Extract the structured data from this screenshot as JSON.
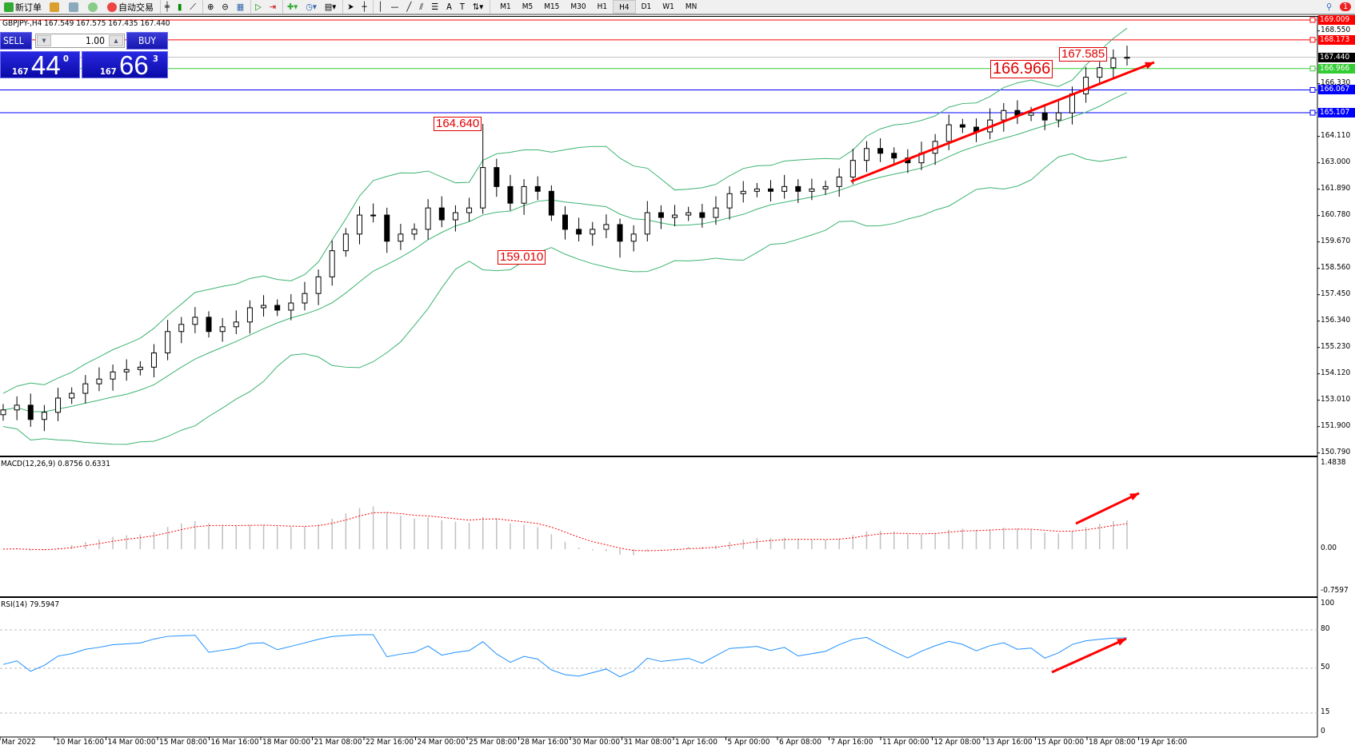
{
  "toolbar": {
    "new_order": "新订单",
    "auto_trading": "自动交易",
    "timeframes": [
      "M1",
      "M5",
      "M15",
      "M30",
      "H1",
      "H4",
      "D1",
      "W1",
      "MN"
    ],
    "active_timeframe": "H4",
    "notification_count": "1"
  },
  "chart": {
    "info": "GBPJPY-,H4  167.549 167.575 167.435 167.440"
  },
  "trade_panel": {
    "sell": "SELL",
    "buy": "BUY",
    "lot": "1.00",
    "bid_small": "167",
    "bid_big": "44",
    "bid_sup": "0",
    "ask_small": "167",
    "ask_big": "66",
    "ask_sup": "3"
  },
  "price_axis": {
    "ticks": [
      "168.550",
      "166.330",
      "164.110",
      "163.000",
      "161.890",
      "160.780",
      "159.670",
      "158.560",
      "157.450",
      "156.340",
      "155.230",
      "154.120",
      "153.010",
      "151.900",
      "150.790"
    ],
    "max": 169.3,
    "min": 150.7
  },
  "levels": [
    {
      "price": "169.009",
      "color": "#ff0000"
    },
    {
      "price": "168.173",
      "color": "#ff0000"
    },
    {
      "price": "167.440",
      "color": "#000000",
      "line": "#c0c0c0"
    },
    {
      "price": "166.966",
      "color": "#32cd32"
    },
    {
      "price": "166.067",
      "color": "#0000ff"
    },
    {
      "price": "165.107",
      "color": "#0000ff"
    }
  ],
  "annotations": {
    "high": "164.640",
    "low": "159.010",
    "level": "166.966",
    "last": "167.585"
  },
  "closes": [
    152.6,
    152.8,
    152.2,
    152.5,
    153.1,
    153.3,
    153.7,
    153.9,
    154.2,
    154.3,
    154.4,
    155.0,
    155.9,
    156.2,
    156.5,
    155.9,
    156.1,
    156.3,
    156.9,
    157.0,
    156.8,
    157.1,
    157.5,
    158.2,
    159.3,
    160.0,
    160.8,
    160.8,
    159.7,
    160.0,
    160.2,
    161.1,
    160.6,
    160.9,
    161.1,
    162.8,
    162.0,
    161.3,
    162.0,
    161.8,
    160.8,
    160.2,
    160.0,
    160.2,
    160.4,
    159.7,
    160.0,
    160.9,
    160.7,
    160.8,
    160.9,
    160.7,
    161.1,
    161.7,
    161.8,
    161.9,
    161.8,
    162.0,
    161.8,
    161.9,
    162.0,
    162.4,
    163.1,
    163.6,
    163.4,
    163.2,
    163.0,
    163.4,
    163.9,
    164.6,
    164.5,
    164.3,
    164.8,
    165.2,
    165.0,
    165.1,
    164.8,
    165.1,
    165.9,
    166.6,
    167.0,
    167.4,
    167.44
  ],
  "macd": {
    "label": "MACD(12,26,9) 0.8756 0.6331",
    "max": "1.4838",
    "zero": "0.00",
    "min": "-0.7597",
    "hist_color": "#c0c0c0",
    "signal_color": "#ff0000"
  },
  "rsi": {
    "label": "RSI(14) 79.5947",
    "ticks": [
      "100",
      "80",
      "50",
      "15",
      "0"
    ],
    "color": "#1e90ff"
  },
  "bands_color": "#3cb371",
  "time_axis": [
    "Mar 2022",
    "10 Mar 16:00",
    "14 Mar 00:00",
    "15 Mar 08:00",
    "16 Mar 16:00",
    "18 Mar 00:00",
    "21 Mar 08:00",
    "22 Mar 16:00",
    "24 Mar 00:00",
    "25 Mar 08:00",
    "28 Mar 16:00",
    "30 Mar 00:00",
    "31 Mar 08:00",
    "1 Apr 16:00",
    "5 Apr 00:00",
    "6 Apr 08:00",
    "7 Apr 16:00",
    "11 Apr 00:00",
    "12 Apr 08:00",
    "13 Apr 16:00",
    "15 Apr 00:00",
    "18 Apr 08:00",
    "19 Apr 16:00"
  ]
}
